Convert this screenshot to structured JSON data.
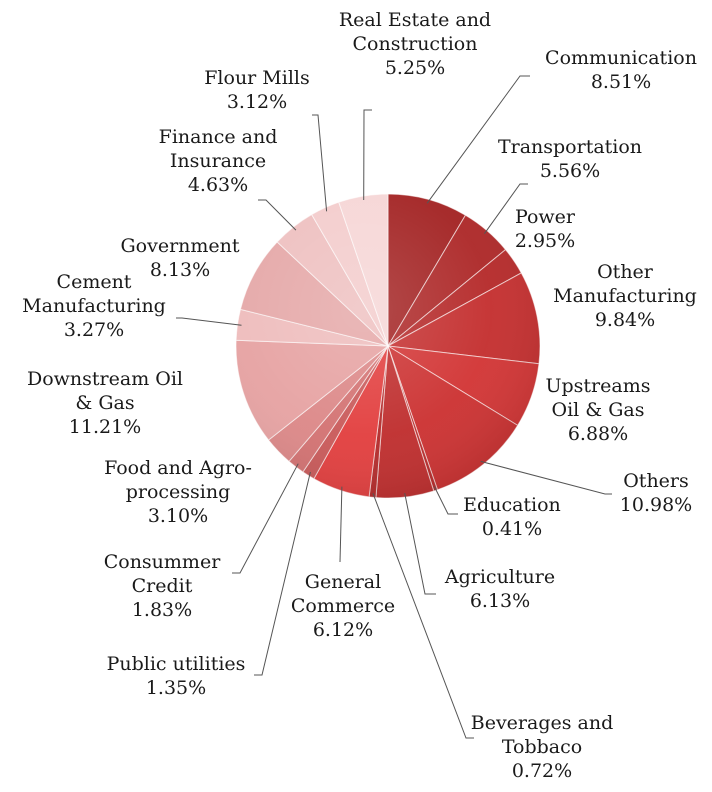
{
  "chart_data": {
    "type": "pie",
    "slices": [
      {
        "name": "Communication",
        "display": [
          "Communication"
        ],
        "pct": "8.51%",
        "value": 8.51,
        "color": "#a32323"
      },
      {
        "name": "Transportation",
        "display": [
          "Transportation"
        ],
        "pct": "5.56%",
        "value": 5.56,
        "color": "#ad2828"
      },
      {
        "name": "Power",
        "display": [
          "Power"
        ],
        "pct": "2.95%",
        "value": 2.95,
        "color": "#b52a2a"
      },
      {
        "name": "Other Manufacturing",
        "display": [
          "Other",
          "Manufacturing"
        ],
        "pct": "9.84%",
        "value": 9.84,
        "color": "#c42f2f"
      },
      {
        "name": "Upstreams Oil & Gas",
        "display": [
          "Upstreams",
          "Oil & Gas"
        ],
        "pct": "6.88%",
        "value": 6.88,
        "color": "#d23535"
      },
      {
        "name": "Others",
        "display": [
          "Others"
        ],
        "pct": "10.98%",
        "value": 10.98,
        "color": "#cc3232"
      },
      {
        "name": "Education",
        "display": [
          "Education"
        ],
        "pct": "0.41%",
        "value": 0.41,
        "color": "#b82b2b"
      },
      {
        "name": "Agriculture",
        "display": [
          "Agriculture"
        ],
        "pct": "6.13%",
        "value": 6.13,
        "color": "#bf2e2e"
      },
      {
        "name": "Beverages and Tobbaco",
        "display": [
          "Beverages and",
          "Tobbaco"
        ],
        "pct": "0.72%",
        "value": 0.72,
        "color": "#b42b2b"
      },
      {
        "name": "General Commerce",
        "display": [
          "General",
          "Commerce"
        ],
        "pct": "6.12%",
        "value": 6.12,
        "color": "#e23f3f"
      },
      {
        "name": "Public utilities",
        "display": [
          "Public utilities"
        ],
        "pct": "1.35%",
        "value": 1.35,
        "color": "#c95a5a"
      },
      {
        "name": "Consummer Credit",
        "display": [
          "Consummer",
          "Credit"
        ],
        "pct": "1.83%",
        "value": 1.83,
        "color": "#d37272"
      },
      {
        "name": "Food and Agro-processing",
        "display": [
          "Food and Agro-",
          "processing"
        ],
        "pct": "3.10%",
        "value": 3.1,
        "color": "#dc8888"
      },
      {
        "name": "Downstream Oil & Gas",
        "display": [
          "Downstream Oil",
          "& Gas"
        ],
        "pct": "11.21%",
        "value": 11.21,
        "color": "#e6a2a2"
      },
      {
        "name": "Cement Manufacturing",
        "display": [
          "Cement",
          "Manufacturing"
        ],
        "pct": "3.27%",
        "value": 3.27,
        "color": "#eebcbc"
      },
      {
        "name": "Government",
        "display": [
          "Government"
        ],
        "pct": "8.13%",
        "value": 8.13,
        "color": "#e5a8a8"
      },
      {
        "name": "Finance and Insurance",
        "display": [
          "Finance and",
          "Insurance"
        ],
        "pct": "4.63%",
        "value": 4.63,
        "color": "#eec0c0"
      },
      {
        "name": "Flour Mills",
        "display": [
          "Flour Mills"
        ],
        "pct": "3.12%",
        "value": 3.12,
        "color": "#f3cccc"
      },
      {
        "name": "Real Estate and Construction",
        "display": [
          "Real Estate and",
          "Construction"
        ],
        "pct": "5.25%",
        "value": 5.25,
        "color": "#f6d6d6"
      }
    ]
  }
}
